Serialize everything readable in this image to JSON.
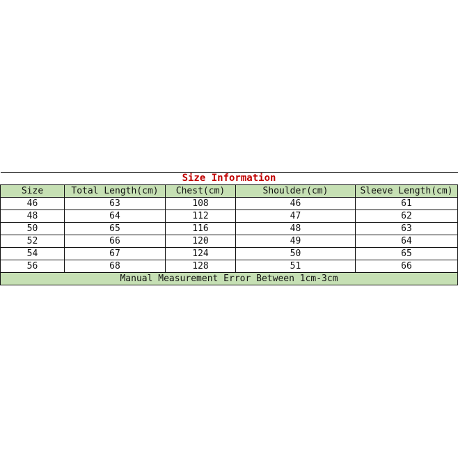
{
  "title": "Size Information",
  "columns": [
    "Size",
    "Total Length(cm)",
    "Chest(cm)",
    "Shoulder(cm)",
    "Sleeve Length(cm)"
  ],
  "rows": [
    [
      "46",
      "63",
      "108",
      "46",
      "61"
    ],
    [
      "48",
      "64",
      "112",
      "47",
      "62"
    ],
    [
      "50",
      "65",
      "116",
      "48",
      "63"
    ],
    [
      "52",
      "66",
      "120",
      "49",
      "64"
    ],
    [
      "54",
      "67",
      "124",
      "50",
      "65"
    ],
    [
      "56",
      "68",
      "128",
      "51",
      "66"
    ]
  ],
  "footer": "Manual Measurement Error Between 1cm-3cm",
  "colors": {
    "header_bg": "#c6e0b4",
    "title": "#c00000"
  }
}
